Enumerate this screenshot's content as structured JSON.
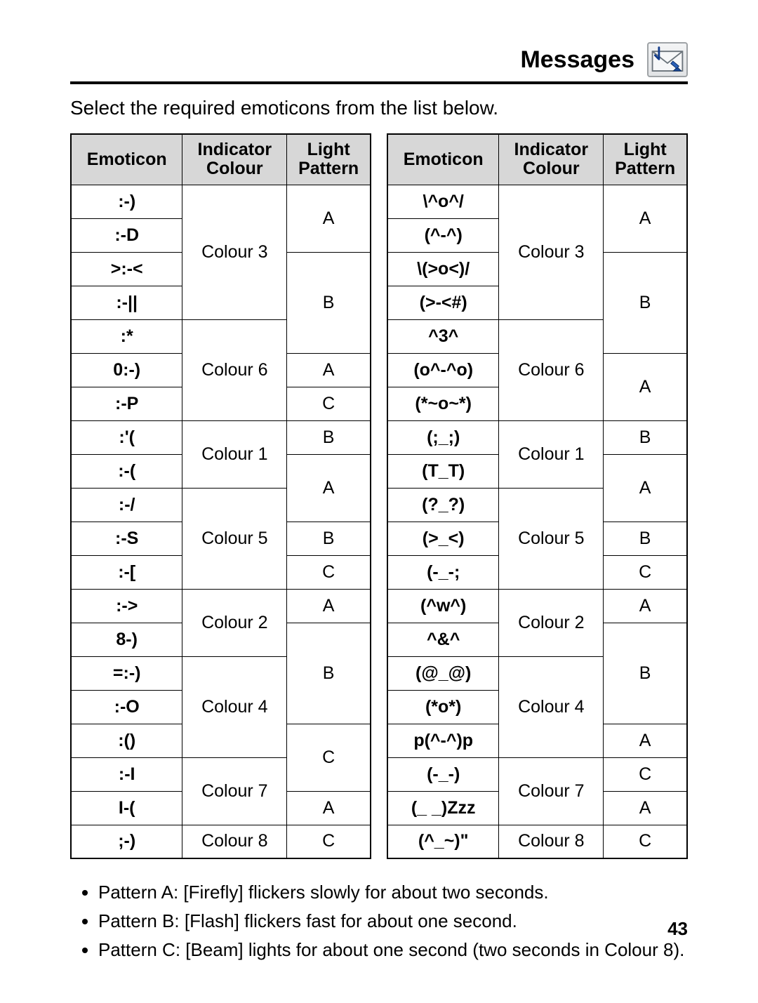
{
  "header": {
    "title": "Messages"
  },
  "intro": "Select the required emoticons from the list below.",
  "headers": {
    "emoticon": "Emoticon",
    "colour": "Indicator Colour",
    "pattern": "Light Pattern"
  },
  "left": {
    "groups": [
      {
        "colour": "Colour 3",
        "rows": [
          {
            "emo": ":-)",
            "pat": "A",
            "patspan": 2
          },
          {
            "emo": ":-D"
          },
          {
            "emo": ">:-<",
            "pat": "B",
            "patspan": 3
          },
          {
            "emo": ":-||"
          }
        ]
      },
      {
        "colour": "Colour 6",
        "rows": [
          {
            "emo": ":*"
          },
          {
            "emo": "0:-)",
            "pat": "A",
            "patspan": 1
          },
          {
            "emo": ":-P",
            "pat": "C",
            "patspan": 1
          }
        ]
      },
      {
        "colour": "Colour 1",
        "rows": [
          {
            "emo": ":'(",
            "pat": "B",
            "patspan": 1
          },
          {
            "emo": ":-(",
            "pat": "A",
            "patspan": 2
          }
        ]
      },
      {
        "colour": "Colour 5",
        "rows": [
          {
            "emo": ":-/"
          },
          {
            "emo": ":-S",
            "pat": "B",
            "patspan": 1
          },
          {
            "emo": ":-[",
            "pat": "C",
            "patspan": 1
          }
        ]
      },
      {
        "colour": "Colour 2",
        "rows": [
          {
            "emo": ":->",
            "pat": "A",
            "patspan": 1
          },
          {
            "emo": "8-)",
            "pat": "B",
            "patspan": 3
          }
        ]
      },
      {
        "colour": "Colour 4",
        "rows": [
          {
            "emo": "=:-)"
          },
          {
            "emo": ":-O"
          },
          {
            "emo": ":()",
            "pat": "C",
            "patspan": 2
          }
        ]
      },
      {
        "colour": "Colour 7",
        "rows": [
          {
            "emo": ":-I"
          },
          {
            "emo": "I-(",
            "pat": "A",
            "patspan": 1
          }
        ]
      },
      {
        "colour": "Colour 8",
        "rows": [
          {
            "emo": ";-)",
            "pat": "C",
            "patspan": 1
          }
        ]
      }
    ]
  },
  "right": {
    "groups": [
      {
        "colour": "Colour 3",
        "rows": [
          {
            "emo": "\\^o^/",
            "pat": "A",
            "patspan": 2
          },
          {
            "emo": "(^-^)"
          },
          {
            "emo": "\\(>o<)/",
            "pat": "B",
            "patspan": 3
          },
          {
            "emo": "(>-<#)"
          }
        ]
      },
      {
        "colour": "Colour 6",
        "rows": [
          {
            "emo": "^3^"
          },
          {
            "emo": "(o^-^o)",
            "pat": "A",
            "patspan": 2
          },
          {
            "emo": "(*~o~*)"
          }
        ]
      },
      {
        "colour": "Colour 1",
        "rows": [
          {
            "emo": "(;_;)",
            "pat": "B",
            "patspan": 1
          },
          {
            "emo": "(T_T)",
            "pat": "A",
            "patspan": 2
          }
        ]
      },
      {
        "colour": "Colour 5",
        "rows": [
          {
            "emo": "(?_?)"
          },
          {
            "emo": "(>_<)",
            "pat": "B",
            "patspan": 1
          },
          {
            "emo": "(-_-;",
            "pat": "C",
            "patspan": 1
          }
        ]
      },
      {
        "colour": "Colour 2",
        "rows": [
          {
            "emo": "(^w^)",
            "pat": "A",
            "patspan": 1
          },
          {
            "emo": "^&^",
            "pat": "B",
            "patspan": 3
          }
        ]
      },
      {
        "colour": "Colour 4",
        "rows": [
          {
            "emo": "(@_@)"
          },
          {
            "emo": "(*o*)"
          },
          {
            "emo": "p(^-^)p",
            "pat": "A",
            "patspan": 1
          }
        ]
      },
      {
        "colour": "Colour 7",
        "rows": [
          {
            "emo": "(-_-)",
            "pat": "C",
            "patspan": 1
          },
          {
            "emo": "(_ _)Zzz",
            "pat": "A",
            "patspan": 1
          }
        ]
      },
      {
        "colour": "Colour 8",
        "rows": [
          {
            "emo": "(^_~)\"",
            "pat": "C",
            "patspan": 1
          }
        ]
      }
    ]
  },
  "notes": [
    "Pattern A: [Firefly] flickers slowly for about two seconds.",
    "Pattern B: [Flash] flickers fast for about one second.",
    "Pattern C: [Beam] lights for about one second (two seconds in Colour 8)."
  ],
  "pageNumber": "43"
}
